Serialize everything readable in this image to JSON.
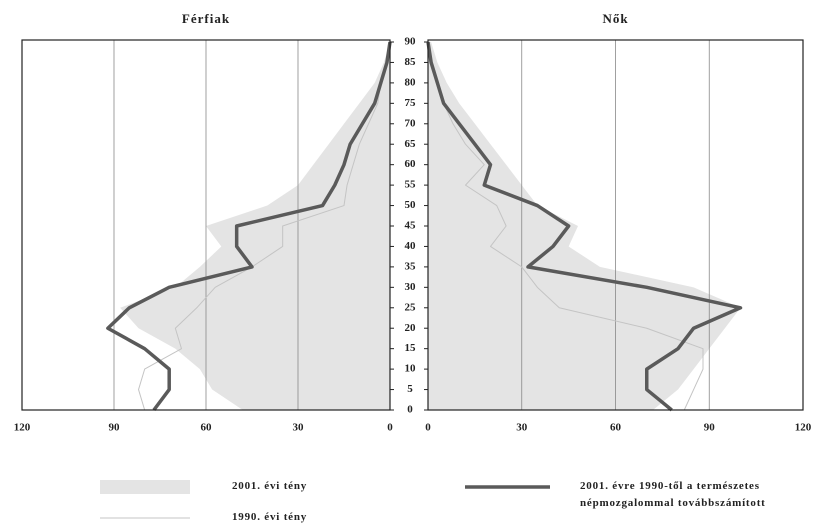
{
  "chart_data": [
    {
      "type": "pyramid",
      "title": "Férfiak",
      "y": [
        0,
        5,
        10,
        15,
        20,
        25,
        30,
        35,
        40,
        45,
        50,
        55,
        60,
        65,
        70,
        75,
        80,
        85,
        90
      ],
      "ylim": [
        0,
        90
      ],
      "yticks": [
        0,
        5,
        10,
        15,
        20,
        25,
        30,
        35,
        40,
        45,
        50,
        55,
        60,
        65,
        70,
        75,
        80,
        85,
        90
      ],
      "xlim": [
        120,
        0
      ],
      "xticks": [
        120,
        90,
        60,
        30,
        0
      ],
      "grid": true,
      "series": [
        {
          "name": "2001. évi tény",
          "mark": "area",
          "color": "#e4e4e4",
          "values": [
            48,
            58,
            62,
            70,
            82,
            88,
            70,
            62,
            55,
            60,
            40,
            30,
            25,
            20,
            15,
            10,
            5,
            2,
            0
          ]
        },
        {
          "name": "1990. évi tény",
          "mark": "line",
          "color": "#c4c4c4",
          "line_width": 1,
          "values": [
            80,
            82,
            80,
            68,
            70,
            63,
            57,
            45,
            35,
            35,
            15,
            14,
            12,
            10,
            7,
            4,
            3,
            1,
            0
          ]
        },
        {
          "name": "2001. évre 1990-től a természetes népmozgalommal továbbszámított",
          "mark": "line",
          "color": "#5a5a5a",
          "line_width": 3.5,
          "values": [
            77,
            72,
            72,
            80,
            92,
            85,
            72,
            45,
            50,
            50,
            22,
            18,
            15,
            13,
            9,
            5,
            3,
            1,
            0
          ]
        }
      ]
    },
    {
      "type": "pyramid",
      "title": "Nők",
      "y": [
        0,
        5,
        10,
        15,
        20,
        25,
        30,
        35,
        40,
        45,
        50,
        55,
        60,
        65,
        70,
        75,
        80,
        85,
        90
      ],
      "ylim": [
        0,
        90
      ],
      "xlim": [
        0,
        120
      ],
      "xticks": [
        0,
        30,
        60,
        90,
        120
      ],
      "grid": true,
      "series": [
        {
          "mark": "area",
          "color": "#e4e4e4",
          "values": [
            72,
            80,
            85,
            90,
            95,
            100,
            85,
            55,
            45,
            48,
            35,
            30,
            25,
            20,
            15,
            10,
            6,
            3,
            1
          ]
        },
        {
          "mark": "line",
          "color": "#c4c4c4",
          "line_width": 1,
          "values": [
            82,
            85,
            88,
            88,
            70,
            42,
            35,
            30,
            20,
            25,
            22,
            12,
            18,
            12,
            8,
            5,
            3,
            1,
            0
          ]
        },
        {
          "mark": "line",
          "color": "#5a5a5a",
          "line_width": 3.5,
          "values": [
            78,
            70,
            70,
            80,
            85,
            100,
            70,
            32,
            40,
            45,
            35,
            18,
            20,
            15,
            10,
            5,
            3,
            1,
            0
          ]
        }
      ]
    }
  ]
}
